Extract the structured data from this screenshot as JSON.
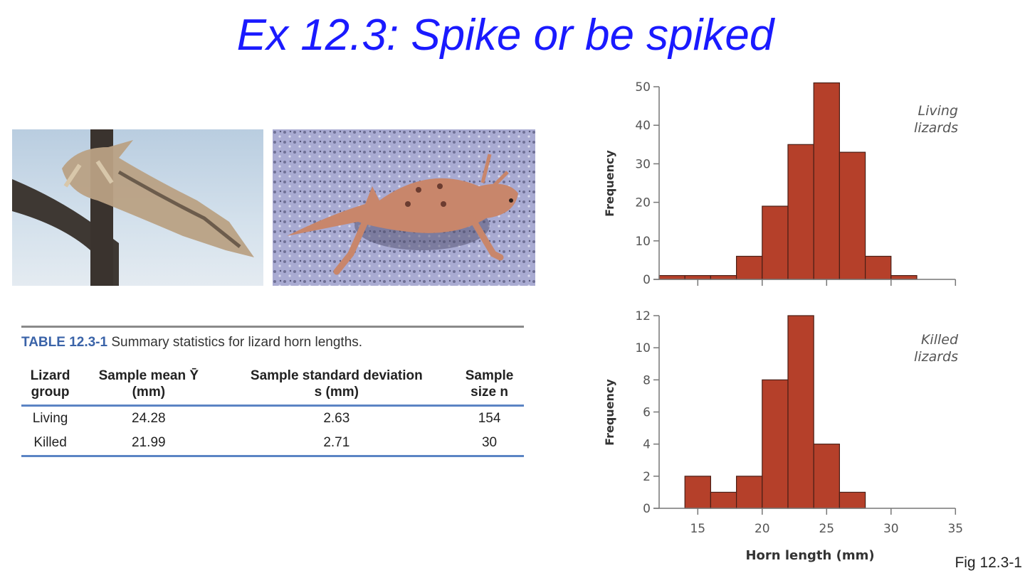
{
  "slide": {
    "title": "Ex 12.3: Spike or be spiked",
    "figure_label": "Fig 12.3-1"
  },
  "photos": [
    {
      "name": "Dead horned lizard impaled on shrike thorn",
      "alt": "killed-lizard-photo"
    },
    {
      "name": "Living horned lizard on gravel",
      "alt": "living-lizard-photo"
    }
  ],
  "table": {
    "label": "TABLE 12.3-1",
    "caption": "Summary statistics for lizard horn lengths.",
    "headers": [
      {
        "line1": "Lizard",
        "line2": "group"
      },
      {
        "line1": "Sample mean Ȳ",
        "line2": "(mm)"
      },
      {
        "line1": "Sample standard deviation",
        "line2": "s (mm)"
      },
      {
        "line1": "Sample",
        "line2": "size n"
      }
    ],
    "rows": [
      [
        "Living",
        "24.28",
        "2.63",
        "154"
      ],
      [
        "Killed",
        "21.99",
        "2.71",
        "30"
      ]
    ]
  },
  "chart_data": [
    {
      "type": "bar",
      "title": "Living lizards",
      "xlabel": "",
      "ylabel": "Frequency",
      "bin_edges": [
        12,
        14,
        16,
        18,
        20,
        22,
        24,
        26,
        28,
        30,
        32
      ],
      "categories": [
        "12-14",
        "14-16",
        "16-18",
        "18-20",
        "20-22",
        "22-24",
        "24-26",
        "26-28",
        "28-30",
        "30-32"
      ],
      "values": [
        1,
        1,
        1,
        6,
        19,
        35,
        51,
        33,
        6,
        1
      ],
      "xlim": [
        12,
        35
      ],
      "ylim": [
        0,
        50
      ],
      "yticks": [
        0,
        10,
        20,
        30,
        40,
        50
      ],
      "xticks": [
        15,
        20,
        25,
        30,
        35
      ],
      "grid": false,
      "bar_color": "#b5402a"
    },
    {
      "type": "bar",
      "title": "Killed lizards",
      "xlabel": "Horn length (mm)",
      "ylabel": "Frequency",
      "bin_edges": [
        14,
        16,
        18,
        20,
        22,
        24,
        26,
        28
      ],
      "categories": [
        "14-16",
        "16-18",
        "18-20",
        "20-22",
        "22-24",
        "24-26",
        "26-28"
      ],
      "values": [
        2,
        1,
        2,
        8,
        12,
        4,
        1
      ],
      "xlim": [
        12,
        35
      ],
      "ylim": [
        0,
        12
      ],
      "yticks": [
        0,
        2,
        4,
        6,
        8,
        10,
        12
      ],
      "xticks": [
        15,
        20,
        25,
        30,
        35
      ],
      "xtick_labels": [
        "15",
        "20",
        "25",
        "30",
        "35"
      ],
      "grid": false,
      "bar_color": "#b5402a"
    }
  ]
}
